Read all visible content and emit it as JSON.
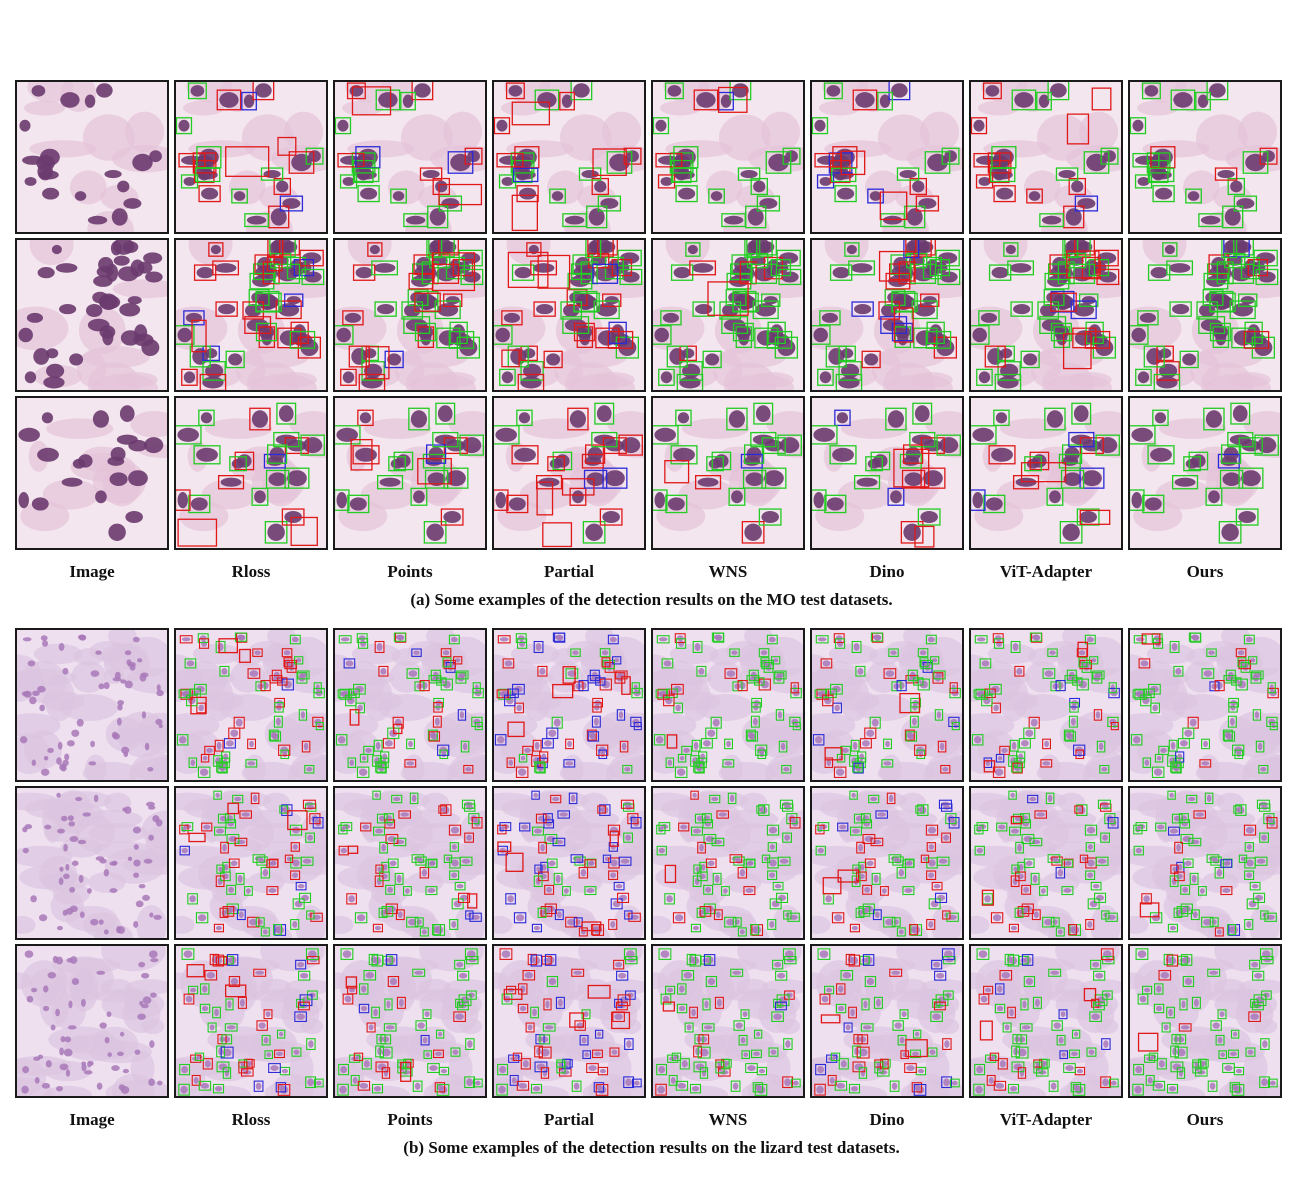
{
  "columns": [
    "Image",
    "Rloss",
    "Points",
    "Partial",
    "WNS",
    "Dino",
    "ViT-Adapter",
    "Ours"
  ],
  "panels": [
    {
      "id": "mo",
      "caption": "(a) Some examples of the detection results on the MO test datasets.",
      "rows": 3,
      "style": "mo"
    },
    {
      "id": "lizard",
      "caption": "(b) Some examples of the detection results on the lizard test datasets.",
      "rows": 3,
      "style": "lizard"
    }
  ],
  "colors": {
    "true_positive": "#22cc22",
    "false_positive": "#e01818",
    "false_negative": "#2a2ad8",
    "tissue_bg": "#f4e6ef",
    "nucleus_mo": "#6a3a6e",
    "nucleus_lizard": "#a878b8",
    "tissue_lizard": "#dcc4e0"
  }
}
